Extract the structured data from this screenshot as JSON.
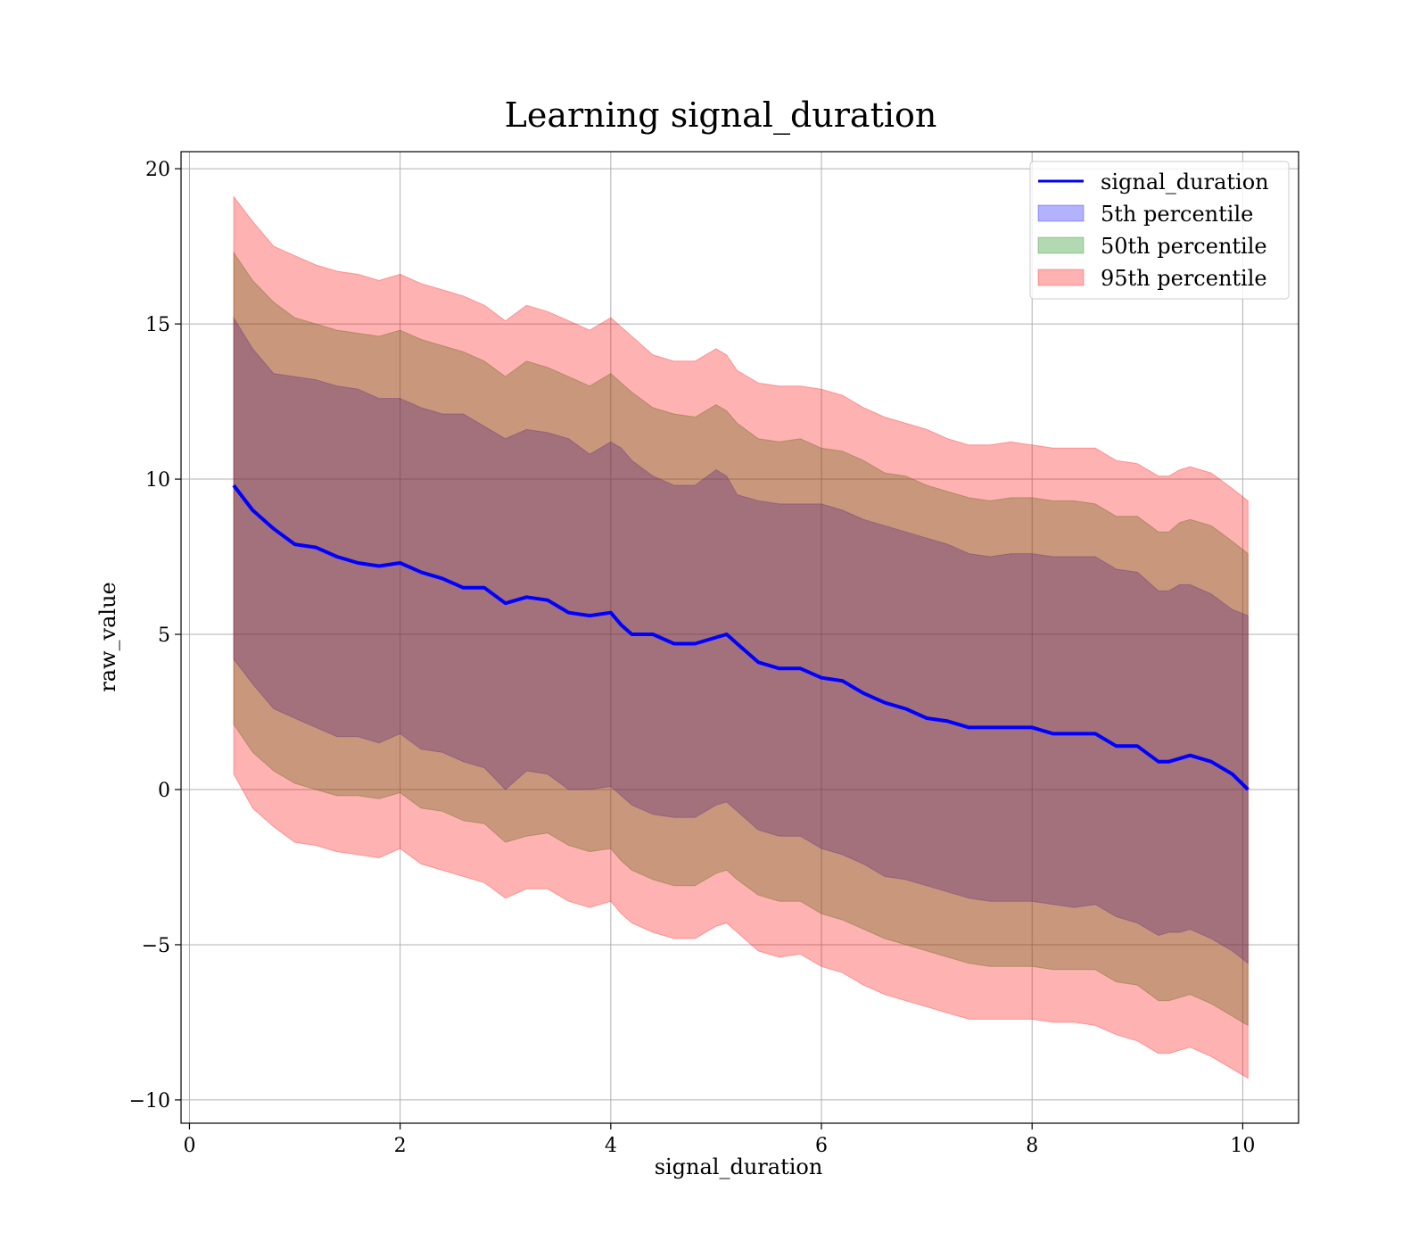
{
  "chart_data": {
    "type": "area",
    "title": "Learning signal_duration",
    "xlabel": "signal_duration",
    "ylabel": "raw_value",
    "xlim": [
      -0.08,
      10.53
    ],
    "ylim": [
      -10.75,
      20.55
    ],
    "xticks": [
      0,
      2,
      4,
      6,
      8,
      10
    ],
    "xtick_labels": [
      "0",
      "2",
      "4",
      "6",
      "8",
      "10"
    ],
    "yticks": [
      -10,
      -5,
      0,
      5,
      10,
      15,
      20
    ],
    "ytick_labels": [
      "−10",
      "−5",
      "0",
      "5",
      "10",
      "15",
      "20"
    ],
    "grid": true,
    "legend_position": "top-right",
    "x": [
      0.42,
      0.6,
      0.8,
      1.0,
      1.2,
      1.4,
      1.6,
      1.8,
      2.0,
      2.2,
      2.4,
      2.6,
      2.8,
      3.0,
      3.2,
      3.4,
      3.6,
      3.8,
      4.0,
      4.1,
      4.2,
      4.4,
      4.6,
      4.8,
      5.0,
      5.1,
      5.2,
      5.4,
      5.6,
      5.8,
      6.0,
      6.2,
      6.4,
      6.6,
      6.8,
      7.0,
      7.2,
      7.4,
      7.6,
      7.8,
      8.0,
      8.2,
      8.4,
      8.6,
      8.8,
      9.0,
      9.2,
      9.3,
      9.4,
      9.5,
      9.7,
      9.9,
      10.05
    ],
    "series": [
      {
        "name": "signal_duration",
        "kind": "line",
        "color": "#0000ff",
        "values": [
          9.8,
          9.0,
          8.4,
          7.9,
          7.8,
          7.5,
          7.3,
          7.2,
          7.3,
          7.0,
          6.8,
          6.5,
          6.5,
          6.0,
          6.2,
          6.1,
          5.7,
          5.6,
          5.7,
          5.3,
          5.0,
          5.0,
          4.7,
          4.7,
          4.9,
          5.0,
          4.7,
          4.1,
          3.9,
          3.9,
          3.6,
          3.5,
          3.1,
          2.8,
          2.6,
          2.3,
          2.2,
          2.0,
          2.0,
          2.0,
          2.0,
          1.8,
          1.8,
          1.8,
          1.4,
          1.4,
          0.9,
          0.9,
          1.0,
          1.1,
          0.9,
          0.5,
          0.0
        ]
      },
      {
        "name": "5th percentile",
        "kind": "band",
        "color": "#0000ff",
        "alpha": 0.3,
        "upper": [
          15.2,
          14.2,
          13.4,
          13.3,
          13.2,
          13.0,
          12.9,
          12.6,
          12.6,
          12.3,
          12.1,
          12.1,
          11.7,
          11.3,
          11.6,
          11.5,
          11.3,
          10.8,
          11.2,
          11.0,
          10.6,
          10.1,
          9.8,
          9.8,
          10.3,
          10.1,
          9.5,
          9.3,
          9.2,
          9.2,
          9.2,
          9.0,
          8.7,
          8.5,
          8.3,
          8.1,
          7.9,
          7.6,
          7.5,
          7.6,
          7.6,
          7.5,
          7.5,
          7.5,
          7.1,
          7.0,
          6.4,
          6.4,
          6.6,
          6.6,
          6.3,
          5.8,
          5.6
        ],
        "lower": [
          4.2,
          3.4,
          2.6,
          2.3,
          2.0,
          1.7,
          1.7,
          1.5,
          1.8,
          1.3,
          1.2,
          0.9,
          0.7,
          0.0,
          0.6,
          0.5,
          0.0,
          0.0,
          0.1,
          -0.2,
          -0.5,
          -0.8,
          -0.9,
          -0.9,
          -0.5,
          -0.4,
          -0.7,
          -1.3,
          -1.5,
          -1.5,
          -1.9,
          -2.1,
          -2.4,
          -2.8,
          -2.9,
          -3.1,
          -3.3,
          -3.5,
          -3.6,
          -3.6,
          -3.6,
          -3.7,
          -3.8,
          -3.7,
          -4.1,
          -4.3,
          -4.7,
          -4.6,
          -4.6,
          -4.5,
          -4.8,
          -5.2,
          -5.6
        ]
      },
      {
        "name": "50th percentile",
        "kind": "band",
        "color": "#008000",
        "alpha": 0.3,
        "upper": [
          17.3,
          16.4,
          15.7,
          15.2,
          15.0,
          14.8,
          14.7,
          14.6,
          14.8,
          14.5,
          14.3,
          14.1,
          13.8,
          13.3,
          13.8,
          13.6,
          13.3,
          13.0,
          13.4,
          13.1,
          12.8,
          12.3,
          12.1,
          12.0,
          12.4,
          12.2,
          11.8,
          11.3,
          11.2,
          11.3,
          11.0,
          10.9,
          10.6,
          10.2,
          10.1,
          9.8,
          9.6,
          9.4,
          9.3,
          9.4,
          9.4,
          9.3,
          9.3,
          9.2,
          8.8,
          8.8,
          8.3,
          8.3,
          8.6,
          8.7,
          8.5,
          8.0,
          7.6
        ],
        "lower": [
          2.1,
          1.2,
          0.6,
          0.2,
          0.0,
          -0.2,
          -0.2,
          -0.3,
          -0.1,
          -0.6,
          -0.7,
          -1.0,
          -1.1,
          -1.7,
          -1.5,
          -1.4,
          -1.8,
          -2.0,
          -1.9,
          -2.3,
          -2.6,
          -2.9,
          -3.1,
          -3.1,
          -2.7,
          -2.6,
          -2.9,
          -3.4,
          -3.6,
          -3.6,
          -4.0,
          -4.2,
          -4.5,
          -4.8,
          -5.0,
          -5.2,
          -5.4,
          -5.6,
          -5.7,
          -5.7,
          -5.7,
          -5.8,
          -5.8,
          -5.8,
          -6.2,
          -6.3,
          -6.8,
          -6.8,
          -6.7,
          -6.6,
          -6.9,
          -7.3,
          -7.6
        ]
      },
      {
        "name": "95th percentile",
        "kind": "band",
        "color": "#ff0000",
        "alpha": 0.3,
        "upper": [
          19.1,
          18.3,
          17.5,
          17.2,
          16.9,
          16.7,
          16.6,
          16.4,
          16.6,
          16.3,
          16.1,
          15.9,
          15.6,
          15.1,
          15.6,
          15.4,
          15.1,
          14.8,
          15.2,
          14.9,
          14.6,
          14.0,
          13.8,
          13.8,
          14.2,
          14.0,
          13.5,
          13.1,
          13.0,
          13.0,
          12.9,
          12.7,
          12.3,
          12.0,
          11.8,
          11.6,
          11.3,
          11.1,
          11.1,
          11.2,
          11.1,
          11.0,
          11.0,
          11.0,
          10.6,
          10.5,
          10.1,
          10.1,
          10.3,
          10.4,
          10.2,
          9.7,
          9.3
        ],
        "lower": [
          0.5,
          -0.6,
          -1.2,
          -1.7,
          -1.8,
          -2.0,
          -2.1,
          -2.2,
          -1.9,
          -2.4,
          -2.6,
          -2.8,
          -3.0,
          -3.5,
          -3.2,
          -3.2,
          -3.6,
          -3.8,
          -3.6,
          -4.0,
          -4.3,
          -4.6,
          -4.8,
          -4.8,
          -4.4,
          -4.3,
          -4.6,
          -5.2,
          -5.4,
          -5.3,
          -5.7,
          -5.9,
          -6.3,
          -6.6,
          -6.8,
          -7.0,
          -7.2,
          -7.4,
          -7.4,
          -7.4,
          -7.4,
          -7.5,
          -7.5,
          -7.6,
          -7.9,
          -8.1,
          -8.5,
          -8.5,
          -8.4,
          -8.3,
          -8.6,
          -9.0,
          -9.3
        ]
      }
    ]
  }
}
